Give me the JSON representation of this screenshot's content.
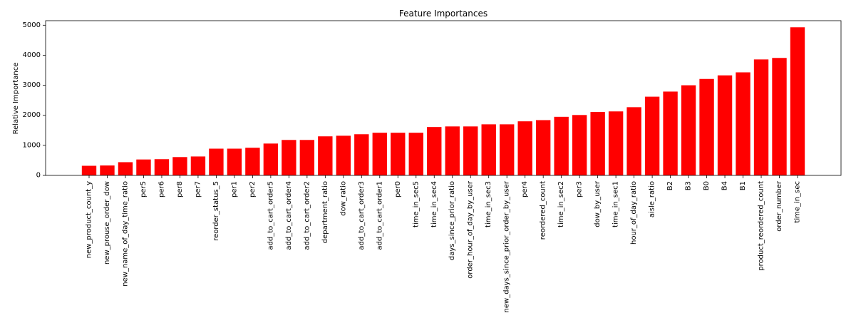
{
  "chart_data": {
    "type": "bar",
    "title": "Feature Importances",
    "xlabel": "",
    "ylabel": "Relative Importance",
    "ylim": [
      0,
      5150
    ],
    "yticks": [
      0,
      1000,
      2000,
      3000,
      4000,
      5000
    ],
    "grid": false,
    "bar_color": "#ff0000",
    "categories": [
      "new_product_count_y",
      "new_prouse_order_dow",
      "new_name_of_day_time_ratio",
      "per5",
      "per6",
      "per8",
      "per7",
      "reorder_status_5",
      "per1",
      "per2",
      "add_to_cart_order5",
      "add_to_cart_order4",
      "add_to_cart_order2",
      "department_ratio",
      "dow_ratio",
      "add_to_cart_order3",
      "add_to_cart_order1",
      "per0",
      "time_in_sec5",
      "time_in_sec4",
      "days_since_prior_ratio",
      "order_hour_of_day_by_user",
      "time_in_sec3",
      "new_days_since_prior_order_by_user",
      "per4",
      "reordered_count",
      "time_in_sec2",
      "per3",
      "dow_by_user",
      "time_in_sec1",
      "hour_of_day_ratio",
      "aisle_ratio",
      "B2",
      "B3",
      "B0",
      "B4",
      "B1",
      "product_reordered_count",
      "order_number",
      "time_in_sec"
    ],
    "values": [
      320,
      330,
      440,
      530,
      540,
      610,
      630,
      890,
      890,
      920,
      1060,
      1180,
      1180,
      1300,
      1320,
      1370,
      1420,
      1420,
      1420,
      1610,
      1630,
      1630,
      1700,
      1700,
      1800,
      1840,
      1950,
      2010,
      2110,
      2130,
      2270,
      2620,
      2790,
      3000,
      3210,
      3330,
      3430,
      3860,
      3910,
      4930
    ]
  }
}
